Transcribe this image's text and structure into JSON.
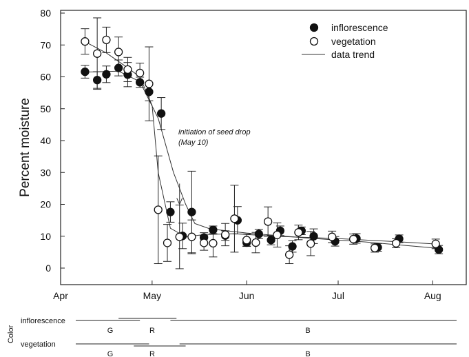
{
  "chart_data": {
    "type": "scatter",
    "title": "",
    "xlabel": "",
    "ylabel": "Percent moisture",
    "ylim": [
      0,
      80
    ],
    "yticks": [
      0,
      10,
      20,
      30,
      40,
      50,
      60,
      70,
      80
    ],
    "xlim": [
      "1997-04-01",
      "1997-08-12"
    ],
    "xticks": [
      {
        "label": "Apr",
        "date": "1997-04-01"
      },
      {
        "label": "May",
        "date": "1997-05-01"
      },
      {
        "label": "Jun",
        "date": "1997-06-01"
      },
      {
        "label": "Jul",
        "date": "1997-07-01"
      },
      {
        "label": "Aug",
        "date": "1997-08-01"
      }
    ],
    "grid": false,
    "legend": {
      "placement": "top-right",
      "entries": [
        "inflorescence",
        "vegetation",
        "data trend"
      ]
    },
    "series": [
      {
        "name": "inflorescence",
        "marker": "filled-circle",
        "points": [
          {
            "x": "1997-04-09",
            "y": 61.6,
            "err": 2.0
          },
          {
            "x": "1997-04-13",
            "y": 59.0,
            "err": 2.6
          },
          {
            "x": "1997-04-16",
            "y": 60.8,
            "err": 2.6
          },
          {
            "x": "1997-04-20",
            "y": 62.8,
            "err": 2.5
          },
          {
            "x": "1997-04-23",
            "y": 60.7,
            "err": 3.8
          },
          {
            "x": "1997-04-27",
            "y": 58.3,
            "err": 1.6
          },
          {
            "x": "1997-04-30",
            "y": 55.3,
            "err": 2.8
          },
          {
            "x": "1997-05-04",
            "y": 48.5,
            "err": 5.0
          },
          {
            "x": "1997-05-07",
            "y": 17.6,
            "err": 3.2
          },
          {
            "x": "1997-05-11",
            "y": 10.1,
            "err": 4.0
          },
          {
            "x": "1997-05-14",
            "y": 17.6,
            "err": 12.8
          },
          {
            "x": "1997-05-18",
            "y": 9.6,
            "err": 1.5
          },
          {
            "x": "1997-05-21",
            "y": 12.0,
            "err": 1.2
          },
          {
            "x": "1997-05-25",
            "y": 10.2,
            "err": 1.5
          },
          {
            "x": "1997-05-29",
            "y": 15.0,
            "err": 4.3
          },
          {
            "x": "1997-06-01",
            "y": 8.0,
            "err": 1.2
          },
          {
            "x": "1997-06-05",
            "y": 10.7,
            "err": 1.5
          },
          {
            "x": "1997-06-09",
            "y": 8.8,
            "err": 1.5
          },
          {
            "x": "1997-06-12",
            "y": 11.7,
            "err": 1.5
          },
          {
            "x": "1997-06-16",
            "y": 6.8,
            "err": 1.8
          },
          {
            "x": "1997-06-19",
            "y": 11.7,
            "err": 1.2
          },
          {
            "x": "1997-06-23",
            "y": 10.0,
            "err": 2.3
          },
          {
            "x": "1997-06-30",
            "y": 8.4,
            "err": 1.5
          },
          {
            "x": "1997-07-07",
            "y": 9.3,
            "err": 1.5
          },
          {
            "x": "1997-07-14",
            "y": 6.5,
            "err": 1.2
          },
          {
            "x": "1997-07-21",
            "y": 9.2,
            "err": 1.2
          },
          {
            "x": "1997-08-03",
            "y": 5.8,
            "err": 1.3
          }
        ]
      },
      {
        "name": "vegetation",
        "marker": "open-circle",
        "points": [
          {
            "x": "1997-04-09",
            "y": 71.1,
            "err": 4.0
          },
          {
            "x": "1997-04-13",
            "y": 67.3,
            "err": 11.2
          },
          {
            "x": "1997-04-16",
            "y": 71.6,
            "err": 4.0
          },
          {
            "x": "1997-04-20",
            "y": 67.8,
            "err": 4.7
          },
          {
            "x": "1997-04-23",
            "y": 62.3,
            "err": 3.8
          },
          {
            "x": "1997-04-27",
            "y": 61.2,
            "err": 3.1
          },
          {
            "x": "1997-04-30",
            "y": 57.8,
            "err": 11.6
          },
          {
            "x": "1997-05-03",
            "y": 18.3,
            "err": 16.9
          },
          {
            "x": "1997-05-06",
            "y": 7.9,
            "err": 5.8
          },
          {
            "x": "1997-05-10",
            "y": 9.8,
            "err": 10.0
          },
          {
            "x": "1997-05-14",
            "y": 9.8,
            "err": 5.3
          },
          {
            "x": "1997-05-18",
            "y": 7.9,
            "err": 2.3
          },
          {
            "x": "1997-05-21",
            "y": 7.8,
            "err": 4.3
          },
          {
            "x": "1997-05-25",
            "y": 10.5,
            "err": 3.5
          },
          {
            "x": "1997-05-28",
            "y": 15.5,
            "err": 10.5
          },
          {
            "x": "1997-06-01",
            "y": 8.8,
            "err": 1.9
          },
          {
            "x": "1997-06-04",
            "y": 8.0,
            "err": 3.2
          },
          {
            "x": "1997-06-08",
            "y": 14.6,
            "err": 4.6
          },
          {
            "x": "1997-06-11",
            "y": 10.4,
            "err": 3.8
          },
          {
            "x": "1997-06-15",
            "y": 4.2,
            "err": 2.8
          },
          {
            "x": "1997-06-18",
            "y": 11.2,
            "err": 2.3
          },
          {
            "x": "1997-06-22",
            "y": 7.7,
            "err": 3.8
          },
          {
            "x": "1997-06-29",
            "y": 9.8,
            "err": 1.8
          },
          {
            "x": "1997-07-06",
            "y": 9.1,
            "err": 1.6
          },
          {
            "x": "1997-07-13",
            "y": 6.3,
            "err": 1.3
          },
          {
            "x": "1997-07-20",
            "y": 7.8,
            "err": 1.4
          },
          {
            "x": "1997-08-02",
            "y": 7.6,
            "err": 1.5
          }
        ]
      },
      {
        "name": "data trend",
        "marker": "line",
        "lines": [
          [
            [
              "1997-04-09",
              71.0
            ],
            [
              "1997-04-16",
              67.5
            ],
            [
              "1997-04-22",
              63.5
            ],
            [
              "1997-04-27",
              60.0
            ],
            [
              "1997-05-01",
              51.0
            ],
            [
              "1997-05-03",
              30.0
            ],
            [
              "1997-05-07",
              12.5
            ],
            [
              "1997-05-12",
              9.8
            ],
            [
              "1997-05-18",
              10.5
            ],
            [
              "1997-05-28",
              10.8
            ],
            [
              "1997-06-10",
              10.0
            ],
            [
              "1997-06-30",
              9.3
            ],
            [
              "1997-07-20",
              8.3
            ],
            [
              "1997-08-03",
              7.5
            ]
          ],
          [
            [
              "1997-04-09",
              61.5
            ],
            [
              "1997-04-20",
              61.8
            ],
            [
              "1997-04-27",
              58.5
            ],
            [
              "1997-05-03",
              47.0
            ],
            [
              "1997-05-08",
              30.0
            ],
            [
              "1997-05-12",
              20.0
            ],
            [
              "1997-05-15",
              14.0
            ],
            [
              "1997-05-20",
              12.3
            ],
            [
              "1997-06-01",
              11.0
            ],
            [
              "1997-06-20",
              9.5
            ],
            [
              "1997-07-10",
              8.2
            ],
            [
              "1997-08-03",
              6.2
            ]
          ]
        ]
      }
    ],
    "annotation": {
      "lines": [
        "initiation of seed drop",
        "(May 10)"
      ],
      "x": "1997-05-10",
      "arrow_from_y": 26.5,
      "arrow_to_y": 20.0
    },
    "color_bars": {
      "axis_label": "Color",
      "rows": [
        {
          "label": "inflorescence",
          "segments": [
            {
              "label": "G",
              "start": "1997-04-11",
              "end": "1997-04-27"
            },
            {
              "label": "R",
              "start": "1997-04-20",
              "end": "1997-05-09"
            },
            {
              "label": "B",
              "start": "1997-05-07",
              "end": "1997-08-12"
            }
          ]
        },
        {
          "label": "vegetation",
          "segments": [
            {
              "label": "G",
              "start": "1997-04-11",
              "end": "1997-04-30"
            },
            {
              "label": "R",
              "start": "1997-04-25",
              "end": "1997-05-12"
            },
            {
              "label": "B",
              "start": "1997-05-10",
              "end": "1997-08-12"
            }
          ]
        }
      ]
    }
  }
}
